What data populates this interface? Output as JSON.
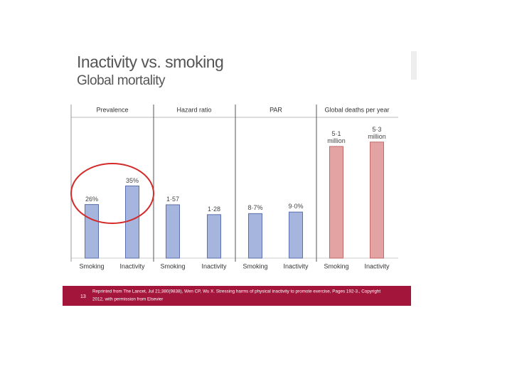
{
  "header": {
    "title": "Inactivity vs. smoking",
    "subtitle": "Global mortality"
  },
  "chart_data": [
    {
      "type": "bar",
      "title": "Prevalence",
      "categories": [
        "Smoking",
        "Inactivity"
      ],
      "values": [
        26,
        35
      ],
      "value_labels": [
        "26%",
        "35%"
      ],
      "color": "#a6b5de"
    },
    {
      "type": "bar",
      "title": "Hazard ratio",
      "categories": [
        "Smoking",
        "Inactivity"
      ],
      "values": [
        1.57,
        1.28
      ],
      "value_labels": [
        "1·57",
        "1·28"
      ],
      "color": "#a6b5de"
    },
    {
      "type": "bar",
      "title": "PAR",
      "categories": [
        "Smoking",
        "Inactivity"
      ],
      "values": [
        8.7,
        9.0
      ],
      "value_labels": [
        "8·7%",
        "9·0%"
      ],
      "color": "#a6b5de"
    },
    {
      "type": "bar",
      "title": "Global deaths per year",
      "categories": [
        "Smoking",
        "Inactivity"
      ],
      "values": [
        5.1,
        5.3
      ],
      "value_labels": [
        "5·1 million",
        "5·3 million"
      ],
      "color": "#e3a3a3"
    }
  ],
  "footer": {
    "page": "13",
    "lines": [
      "Reprinted from The Lancet, Jul 21;380(9838), Wen CP, Wu X. Stressing harms of physical inactivity to promote exercise, Pages 192-3., Copyright",
      "2012, with permission from Elsevier"
    ]
  }
}
